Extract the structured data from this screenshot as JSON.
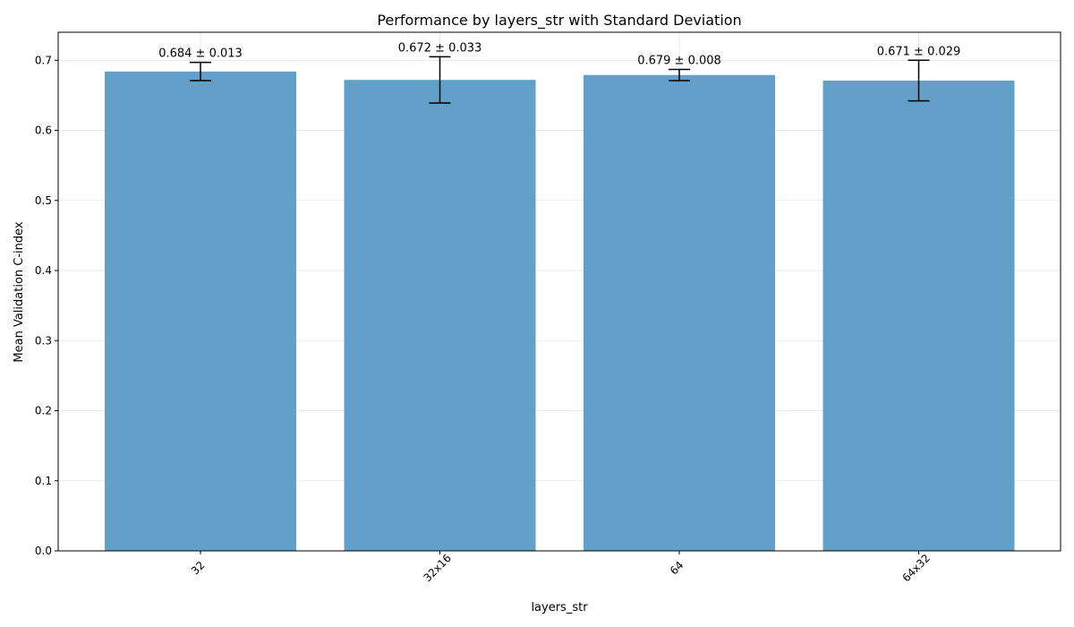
{
  "chart_data": {
    "type": "bar",
    "title": "Performance by layers_str with Standard Deviation",
    "xlabel": "layers_str",
    "ylabel": "Mean Validation C-index",
    "categories": [
      "32",
      "32x16",
      "64",
      "64x32"
    ],
    "values": [
      0.684,
      0.672,
      0.679,
      0.671
    ],
    "errors": [
      0.013,
      0.033,
      0.008,
      0.029
    ],
    "data_labels": [
      "0.684 ± 0.013",
      "0.672 ± 0.033",
      "0.679 ± 0.008",
      "0.671 ± 0.029"
    ],
    "ylim": [
      0,
      0.74
    ],
    "yticks": [
      0.0,
      0.1,
      0.2,
      0.3,
      0.4,
      0.5,
      0.6,
      0.7
    ],
    "ytick_labels": [
      "0.0",
      "0.1",
      "0.2",
      "0.3",
      "0.4",
      "0.5",
      "0.6",
      "0.7"
    ],
    "bar_color": "#62a0ca",
    "grid": true,
    "legend": "none"
  }
}
